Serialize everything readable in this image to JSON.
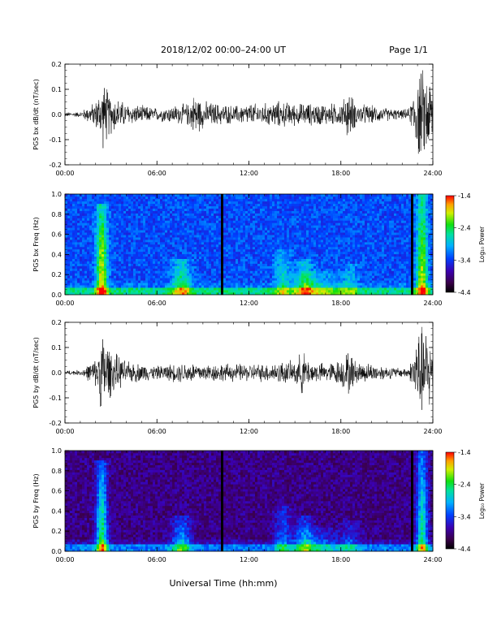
{
  "header": {
    "title": "2018/12/02  00:00–24:00 UT",
    "page": "Page 1/1"
  },
  "chart_data": [
    {
      "type": "line",
      "id": "panel1",
      "ylabel": "PG5 bx dB/dt (nT/sec)",
      "ylim": [
        -0.2,
        0.2
      ],
      "yticks": [
        -0.2,
        -0.1,
        0.0,
        0.1,
        0.2
      ],
      "yticklabels": [
        "-0.2",
        "-0.1",
        "0.0",
        "0.1",
        "0.2"
      ],
      "xlim": [
        0,
        24
      ],
      "xticks": [
        0,
        6,
        12,
        18,
        24
      ],
      "xticklabels": [
        "00:00",
        "06:00",
        "12:00",
        "18:00",
        "24:00"
      ],
      "x": [
        0,
        1,
        2,
        2.5,
        3,
        4,
        5,
        6,
        7,
        8,
        8.5,
        9,
        10,
        11,
        12,
        13,
        14,
        15,
        16,
        17,
        18,
        18.5,
        19,
        20,
        21,
        22,
        22.5,
        23,
        23.5,
        24
      ],
      "y_envelope": [
        0.01,
        0.012,
        0.06,
        0.15,
        0.09,
        0.05,
        0.04,
        0.03,
        0.04,
        0.05,
        0.1,
        0.06,
        0.05,
        0.04,
        0.05,
        0.05,
        0.06,
        0.05,
        0.05,
        0.05,
        0.05,
        0.11,
        0.05,
        0.04,
        0.03,
        0.02,
        0.03,
        0.2,
        0.2,
        0.15
      ]
    },
    {
      "type": "heatmap",
      "id": "panel2",
      "ylabel": "PG5 bx Freq (Hz)",
      "ylim": [
        0,
        1.0
      ],
      "yticks": [
        0.0,
        0.2,
        0.4,
        0.6,
        0.8,
        1.0
      ],
      "yticklabels": [
        "0.0",
        "0.2",
        "0.4",
        "0.6",
        "0.8",
        "1.0"
      ],
      "xlim": [
        0,
        24
      ],
      "xticks": [
        0,
        6,
        12,
        18,
        24
      ],
      "xticklabels": [
        "00:00",
        "06:00",
        "12:00",
        "18:00",
        "24:00"
      ],
      "colorbar": {
        "label": "Log₁₀ Power",
        "range": [
          -4.4,
          -1.4
        ],
        "ticks": [
          -1.4,
          -2.4,
          -3.4,
          -4.4
        ],
        "ticklabels": [
          "-1.4",
          "-2.4",
          "-3.4",
          "-4.4"
        ]
      },
      "data_gaps_hours": [
        10.2,
        22.6
      ]
    },
    {
      "type": "line",
      "id": "panel3",
      "ylabel": "PG5 by dB/dt (nT/sec)",
      "ylim": [
        -0.2,
        0.2
      ],
      "yticks": [
        -0.2,
        -0.1,
        0.0,
        0.1,
        0.2
      ],
      "yticklabels": [
        "-0.2",
        "-0.1",
        "0.0",
        "0.1",
        "0.2"
      ],
      "xlim": [
        0,
        24
      ],
      "xticks": [
        0,
        6,
        12,
        18,
        24
      ],
      "xticklabels": [
        "00:00",
        "06:00",
        "12:00",
        "18:00",
        "24:00"
      ],
      "x": [
        0,
        1,
        2,
        2.5,
        3,
        4,
        5,
        6,
        7,
        8,
        9,
        10,
        11,
        12,
        13,
        14,
        15,
        15.5,
        16,
        17,
        18,
        18.5,
        19,
        20,
        21,
        22,
        22.5,
        23,
        23.5,
        24
      ],
      "y_envelope": [
        0.01,
        0.012,
        0.06,
        0.2,
        0.1,
        0.05,
        0.04,
        0.03,
        0.04,
        0.05,
        0.04,
        0.04,
        0.04,
        0.04,
        0.04,
        0.05,
        0.05,
        0.1,
        0.05,
        0.04,
        0.06,
        0.1,
        0.05,
        0.04,
        0.03,
        0.02,
        0.03,
        0.2,
        0.2,
        0.15
      ]
    },
    {
      "type": "heatmap",
      "id": "panel4",
      "ylabel": "PG5 by Freq (Hz)",
      "ylim": [
        0,
        1.0
      ],
      "yticks": [
        0.0,
        0.2,
        0.4,
        0.6,
        0.8,
        1.0
      ],
      "yticklabels": [
        "0.0",
        "0.2",
        "0.4",
        "0.6",
        "0.8",
        "1.0"
      ],
      "xlim": [
        0,
        24
      ],
      "xticks": [
        0,
        6,
        12,
        18,
        24
      ],
      "xticklabels": [
        "00:00",
        "06:00",
        "12:00",
        "18:00",
        "24:00"
      ],
      "colorbar": {
        "label": "Log₁₀ Power",
        "range": [
          -4.4,
          -1.4
        ],
        "ticks": [
          -1.4,
          -2.4,
          -3.4,
          -4.4
        ],
        "ticklabels": [
          "-1.4",
          "-2.4",
          "-3.4",
          "-4.4"
        ]
      },
      "data_gaps_hours": [
        10.2,
        22.6
      ]
    }
  ],
  "xlabel": "Universal Time (hh:mm)"
}
